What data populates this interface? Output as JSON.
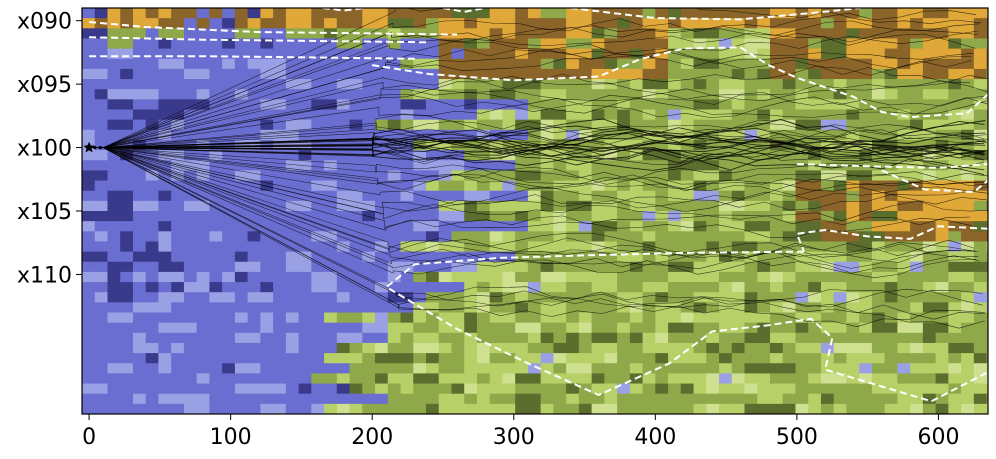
{
  "chart_data": {
    "type": "heatmap",
    "title": "",
    "xlabel": "",
    "ylabel": "",
    "xlim": [
      -5,
      635
    ],
    "ylim": [
      121,
      89
    ],
    "x_ticks": [
      {
        "value": 0,
        "label": "0"
      },
      {
        "value": 100,
        "label": "100"
      },
      {
        "value": 200,
        "label": "200"
      },
      {
        "value": 300,
        "label": "300"
      },
      {
        "value": 400,
        "label": "400"
      },
      {
        "value": 500,
        "label": "500"
      },
      {
        "value": 600,
        "label": "600"
      }
    ],
    "y_ticks": [
      {
        "value": 90,
        "label": "x090"
      },
      {
        "value": 95,
        "label": "x095"
      },
      {
        "value": 100,
        "label": "x100"
      },
      {
        "value": 105,
        "label": "x105"
      },
      {
        "value": 110,
        "label": "x110"
      }
    ],
    "background": {
      "description_free": true,
      "colors": {
        "deep_blue": "#3a3a8c",
        "blue": "#6a6ed0",
        "light_blue": "#9aa0e4",
        "dark_green": "#5c6e2e",
        "green": "#8ea84a",
        "light_green": "#b8d068",
        "pale_green": "#cfe090",
        "brown": "#8a6428",
        "orange": "#e0a838"
      }
    },
    "origin_marker": {
      "x": 0,
      "y": 100,
      "symbol": "star"
    },
    "fan_endpoints": {
      "upper": {
        "x": 200,
        "y": 90
      },
      "lower": {
        "x": 220,
        "y": 110
      },
      "center": {
        "x": 635,
        "y": 100
      }
    },
    "trajectory_count": 60,
    "contours": [
      {
        "color": "#ffffff",
        "style": "dashed",
        "points": [
          [
            0,
            90.1
          ],
          [
            40,
            90.5
          ],
          [
            120,
            90.9
          ],
          [
            200,
            91.0
          ],
          [
            260,
            91.1
          ]
        ]
      },
      {
        "color": "#ffffff",
        "style": "dashed",
        "points": [
          [
            0,
            91.3
          ],
          [
            80,
            91.5
          ],
          [
            160,
            91.6
          ],
          [
            240,
            91.7
          ]
        ]
      },
      {
        "color": "#ffffff",
        "style": "dashed",
        "points": [
          [
            0,
            92.8
          ],
          [
            80,
            92.8
          ],
          [
            160,
            92.9
          ],
          [
            230,
            93.0
          ]
        ]
      },
      {
        "color": "#ffffff",
        "style": "dashed",
        "points": [
          [
            200,
            93.5
          ],
          [
            240,
            94.2
          ],
          [
            300,
            94.7
          ],
          [
            360,
            94.4
          ],
          [
            390,
            93.0
          ],
          [
            420,
            92.2
          ],
          [
            460,
            92.1
          ],
          [
            480,
            93.5
          ],
          [
            500,
            94.5
          ],
          [
            540,
            96.0
          ],
          [
            560,
            97.2
          ],
          [
            580,
            97.6
          ],
          [
            620,
            97.3
          ],
          [
            635,
            95.8
          ]
        ]
      },
      {
        "color": "#ffffff",
        "style": "dashed",
        "points": [
          [
            165,
            89.0
          ],
          [
            180,
            89.2
          ],
          [
            195,
            89.0
          ]
        ]
      },
      {
        "color": "#ffffff",
        "style": "dashed",
        "points": [
          [
            250,
            89.0
          ],
          [
            265,
            89.3
          ],
          [
            280,
            89.0
          ]
        ]
      },
      {
        "color": "#ffffff",
        "style": "dashed",
        "points": [
          [
            340,
            89.0
          ],
          [
            400,
            89.8
          ],
          [
            460,
            89.9
          ],
          [
            510,
            89.4
          ],
          [
            545,
            89.0
          ]
        ]
      },
      {
        "color": "#ffffff",
        "style": "dashed",
        "points": [
          [
            500,
            101.3
          ],
          [
            560,
            101.5
          ],
          [
            600,
            101.6
          ],
          [
            635,
            101.3
          ]
        ]
      },
      {
        "color": "#ffffff",
        "style": "dashed",
        "points": [
          [
            560,
            101.8
          ],
          [
            590,
            103.3
          ],
          [
            625,
            103.5
          ],
          [
            635,
            102.6
          ]
        ]
      },
      {
        "color": "#ffffff",
        "style": "dashed",
        "points": [
          [
            635,
            106.4
          ],
          [
            600,
            106.2
          ],
          [
            580,
            107.2
          ],
          [
            550,
            107.0
          ],
          [
            520,
            106.5
          ],
          [
            500,
            106.8
          ],
          [
            505,
            108.2
          ]
        ]
      },
      {
        "color": "#ffffff",
        "style": "dashed",
        "points": [
          [
            505,
            108.2
          ],
          [
            420,
            108.3
          ],
          [
            350,
            108.5
          ],
          [
            290,
            108.7
          ],
          [
            230,
            109.2
          ],
          [
            210,
            111.0
          ],
          [
            260,
            114.3
          ],
          [
            310,
            117.0
          ],
          [
            360,
            119.5
          ],
          [
            410,
            117.0
          ],
          [
            440,
            114.5
          ],
          [
            480,
            114.0
          ],
          [
            510,
            113.5
          ],
          [
            525,
            115.0
          ],
          [
            520,
            117.5
          ],
          [
            565,
            119.0
          ],
          [
            595,
            120.0
          ],
          [
            635,
            117.7
          ]
        ]
      }
    ]
  }
}
